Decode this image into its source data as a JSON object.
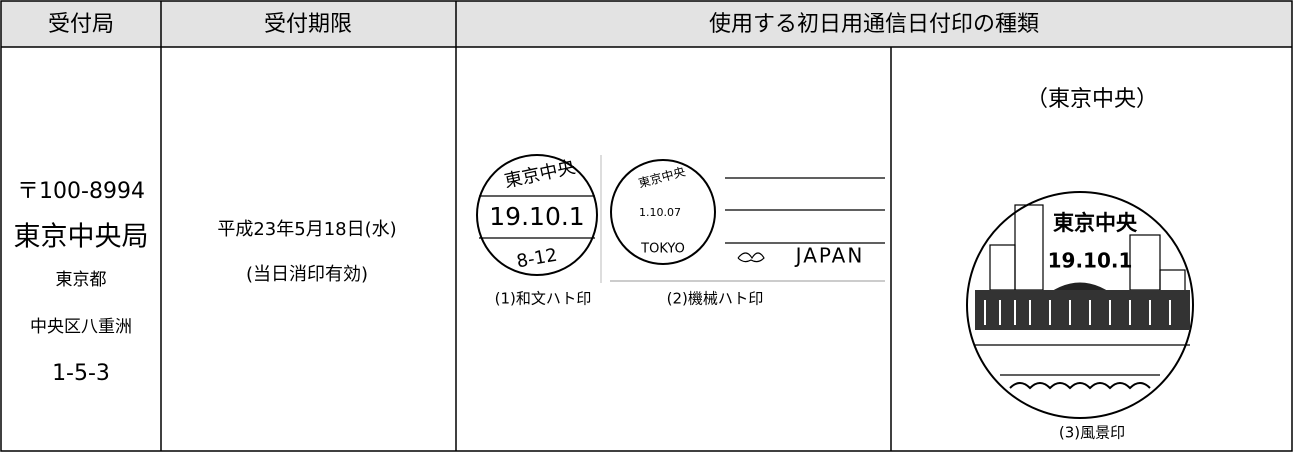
{
  "header": [
    "受付局",
    "受付期限",
    "使用する初日用通信日付印の種類"
  ],
  "office": [
    "〒100-8994",
    "東京中央局",
    "東京都",
    "中央区八重洲",
    "1-5-3"
  ],
  "deadline": [
    "平成23年5月18日(水)",
    "(当日消印有効)"
  ],
  "stamps": [
    {
      "label": "(1)和文ハト印",
      "texts": [
        "東京中央",
        "19.10.1",
        "8-12"
      ]
    },
    {
      "label": "(2)機械ハト印",
      "texts": [
        "東京中央",
        "1.10.07",
        "TOKYO",
        "JAPAN"
      ]
    },
    {
      "label": "(3)風景印",
      "caption": "（東京中央）",
      "texts": [
        "東京中央",
        "19.10.1"
      ]
    }
  ]
}
